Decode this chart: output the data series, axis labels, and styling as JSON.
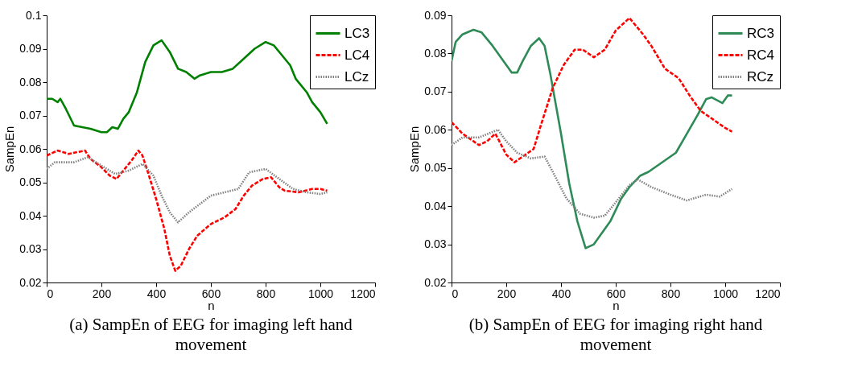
{
  "chart_data": [
    {
      "type": "line",
      "xlabel": "n",
      "ylabel": "SampEn",
      "xlim": [
        0,
        1200
      ],
      "xticks": [
        0,
        200,
        400,
        600,
        800,
        1000,
        1200
      ],
      "ylim": [
        0.02,
        0.1
      ],
      "yticks": [
        0.02,
        0.03,
        0.04,
        0.05,
        0.06,
        0.07,
        0.08,
        0.09,
        0.1
      ],
      "grid": false,
      "legend": "top right",
      "annotations": [
        "(a) SampEn of EEG for imaging left hand movement"
      ],
      "series": [
        {
          "name": "LC3",
          "color": "#008000",
          "line_style": "solid",
          "x": [
            0,
            20,
            40,
            50,
            70,
            100,
            130,
            160,
            200,
            220,
            240,
            260,
            280,
            300,
            330,
            360,
            390,
            410,
            420,
            450,
            480,
            510,
            540,
            560,
            600,
            640,
            680,
            720,
            760,
            800,
            830,
            860,
            890,
            910,
            950,
            970,
            1000,
            1025
          ],
          "values": [
            0.075,
            0.075,
            0.074,
            0.075,
            0.072,
            0.067,
            0.0665,
            0.066,
            0.065,
            0.065,
            0.0665,
            0.066,
            0.069,
            0.071,
            0.077,
            0.086,
            0.091,
            0.092,
            0.0925,
            0.089,
            0.084,
            0.083,
            0.081,
            0.082,
            0.083,
            0.083,
            0.084,
            0.087,
            0.09,
            0.092,
            0.091,
            0.088,
            0.085,
            0.081,
            0.077,
            0.074,
            0.071,
            0.0675
          ]
        },
        {
          "name": "LC4",
          "color": "#ff0000",
          "line_style": "dashed",
          "x": [
            0,
            40,
            80,
            140,
            160,
            200,
            230,
            255,
            280,
            310,
            335,
            350,
            370,
            400,
            430,
            450,
            470,
            490,
            520,
            550,
            600,
            650,
            690,
            720,
            750,
            790,
            820,
            850,
            870,
            920,
            970,
            1000,
            1025
          ],
          "values": [
            0.058,
            0.0595,
            0.0585,
            0.0595,
            0.057,
            0.0545,
            0.052,
            0.051,
            0.0535,
            0.0565,
            0.0595,
            0.058,
            0.053,
            0.045,
            0.036,
            0.028,
            0.0235,
            0.025,
            0.03,
            0.034,
            0.0375,
            0.0395,
            0.042,
            0.046,
            0.049,
            0.051,
            0.0515,
            0.0485,
            0.0475,
            0.047,
            0.048,
            0.048,
            0.0475
          ]
        },
        {
          "name": "LCz",
          "color": "#808080",
          "line_style": "dotted",
          "x": [
            0,
            30,
            100,
            150,
            200,
            250,
            300,
            350,
            390,
            420,
            450,
            480,
            520,
            560,
            600,
            650,
            700,
            740,
            800,
            850,
            900,
            950,
            1000,
            1025
          ],
          "values": [
            0.054,
            0.056,
            0.056,
            0.0575,
            0.055,
            0.0525,
            0.0535,
            0.0555,
            0.052,
            0.046,
            0.041,
            0.038,
            0.041,
            0.0435,
            0.046,
            0.047,
            0.048,
            0.053,
            0.054,
            0.051,
            0.048,
            0.047,
            0.0465,
            0.047
          ]
        }
      ]
    },
    {
      "type": "line",
      "xlabel": "n",
      "ylabel": "SampEn",
      "xlim": [
        0,
        1200
      ],
      "xticks": [
        0,
        200,
        400,
        600,
        800,
        1000,
        1200
      ],
      "ylim": [
        0.02,
        0.09
      ],
      "yticks": [
        0.02,
        0.03,
        0.04,
        0.05,
        0.06,
        0.07,
        0.08,
        0.09
      ],
      "grid": false,
      "legend": "top right",
      "annotations": [
        "(b) SampEn of EEG for imaging right hand movement"
      ],
      "series": [
        {
          "name": "RC3",
          "color": "#2e8b57",
          "line_style": "solid",
          "x": [
            0,
            15,
            40,
            80,
            110,
            150,
            190,
            220,
            240,
            260,
            290,
            320,
            340,
            360,
            380,
            400,
            430,
            460,
            490,
            520,
            550,
            580,
            620,
            650,
            690,
            720,
            780,
            820,
            860,
            900,
            930,
            950,
            990,
            1010,
            1025
          ],
          "values": [
            0.078,
            0.083,
            0.085,
            0.0862,
            0.0855,
            0.082,
            0.078,
            0.075,
            0.075,
            0.078,
            0.082,
            0.084,
            0.082,
            0.075,
            0.067,
            0.059,
            0.046,
            0.036,
            0.029,
            0.03,
            0.033,
            0.036,
            0.042,
            0.045,
            0.048,
            0.049,
            0.052,
            0.054,
            0.059,
            0.064,
            0.068,
            0.0685,
            0.067,
            0.069,
            0.069
          ]
        },
        {
          "name": "RC4",
          "color": "#ff0000",
          "line_style": "dashed",
          "x": [
            0,
            40,
            100,
            130,
            160,
            200,
            230,
            260,
            300,
            330,
            370,
            410,
            450,
            480,
            520,
            560,
            600,
            650,
            700,
            730,
            780,
            830,
            870,
            910,
            950,
            1000,
            1025
          ],
          "values": [
            0.062,
            0.059,
            0.056,
            0.057,
            0.059,
            0.0535,
            0.0515,
            0.053,
            0.055,
            0.062,
            0.071,
            0.077,
            0.081,
            0.081,
            0.079,
            0.081,
            0.086,
            0.0893,
            0.085,
            0.082,
            0.076,
            0.0735,
            0.069,
            0.065,
            0.063,
            0.0605,
            0.0595
          ]
        },
        {
          "name": "RCz",
          "color": "#808080",
          "line_style": "dotted",
          "x": [
            0,
            40,
            100,
            170,
            200,
            240,
            290,
            340,
            370,
            420,
            470,
            520,
            560,
            600,
            650,
            680,
            730,
            800,
            860,
            930,
            980,
            1025
          ],
          "values": [
            0.056,
            0.058,
            0.058,
            0.06,
            0.057,
            0.054,
            0.0525,
            0.053,
            0.049,
            0.042,
            0.038,
            0.037,
            0.0375,
            0.041,
            0.0455,
            0.047,
            0.045,
            0.043,
            0.0415,
            0.043,
            0.0425,
            0.0445
          ]
        }
      ]
    }
  ]
}
